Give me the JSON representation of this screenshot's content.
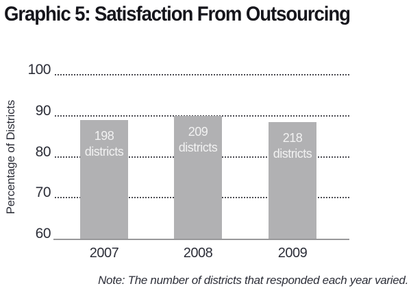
{
  "note": "Note: The number of districts that responded each year varied.",
  "colors": {
    "title_text": "#16161c",
    "axis_text": "#2c2e38",
    "gridline": "#4b4b52",
    "baseline": "#98989a",
    "bar": "#b1b1b3",
    "bar_text": "#f2f2f2",
    "background": "#ffffff"
  },
  "chart_data": {
    "type": "bar",
    "title": "Graphic 5: Satisfaction From Outsourcing",
    "categories": [
      "2007",
      "2008",
      "2009"
    ],
    "values": [
      89,
      90,
      88.5
    ],
    "bar_labels": [
      [
        "198",
        "districts"
      ],
      [
        "209",
        "districts"
      ],
      [
        "218",
        "districts"
      ]
    ],
    "xlabel": "",
    "ylabel": "Percentage of Districts",
    "ylim": [
      60,
      100
    ],
    "yticks": [
      60,
      70,
      80,
      90,
      100
    ],
    "grid": "horizontal dotted",
    "legend": "none",
    "bar_color": "#b1b1b3",
    "bar_label_color": "#f2f2f2"
  }
}
